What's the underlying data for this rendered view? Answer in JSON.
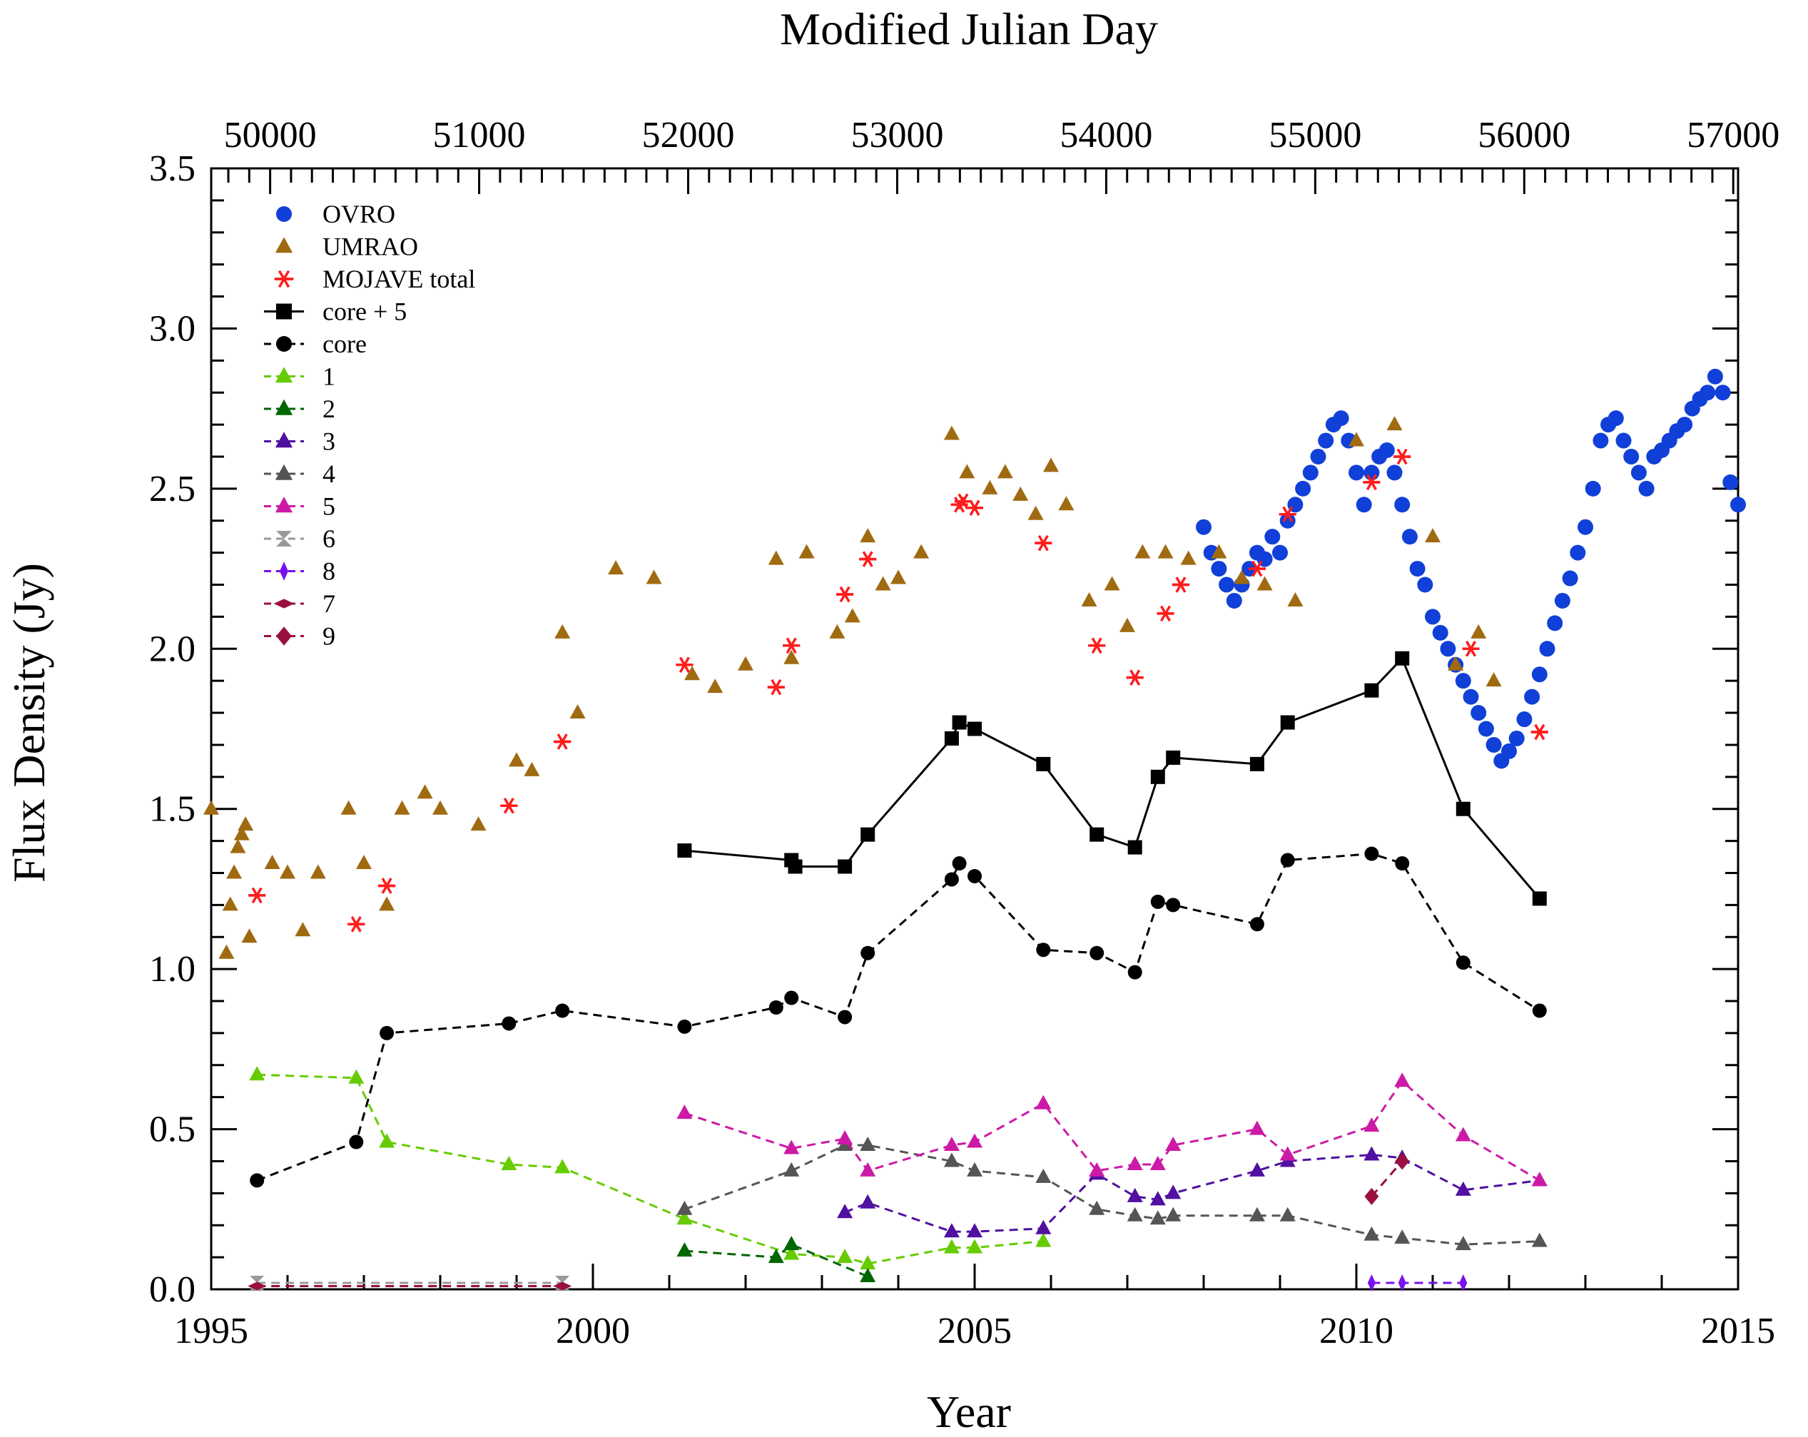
{
  "chart_data": {
    "type": "scatter",
    "title": "",
    "xlabel": "Year",
    "x2label": "Modified Julian Day",
    "ylabel": "Flux Density (Jy)",
    "xlim": [
      1995,
      2015
    ],
    "ylim": [
      0,
      3.5
    ],
    "xticks": [
      "1995",
      "2000",
      "2005",
      "2010",
      "2015"
    ],
    "x2ticks": [
      "50000",
      "51000",
      "52000",
      "53000",
      "54000",
      "55000",
      "56000",
      "57000"
    ],
    "yticks": [
      "0.0",
      "0.5",
      "1.0",
      "1.5",
      "2.0",
      "2.5",
      "3.0",
      "3.5"
    ],
    "legend_position": "top-left",
    "series": [
      {
        "name": "OVRO",
        "marker": "circle",
        "color": "#1040d8",
        "line": "none",
        "x": [
          2008.0,
          2008.1,
          2008.2,
          2008.3,
          2008.4,
          2008.5,
          2008.6,
          2008.7,
          2008.8,
          2008.9,
          2009.0,
          2009.1,
          2009.2,
          2009.3,
          2009.4,
          2009.5,
          2009.6,
          2009.7,
          2009.8,
          2009.9,
          2010.0,
          2010.1,
          2010.2,
          2010.3,
          2010.4,
          2010.5,
          2010.6,
          2010.7,
          2010.8,
          2010.9,
          2011.0,
          2011.1,
          2011.2,
          2011.3,
          2011.4,
          2011.5,
          2011.6,
          2011.7,
          2011.8,
          2011.9,
          2012.0,
          2012.1,
          2012.2,
          2012.3,
          2012.4,
          2012.5,
          2012.6,
          2012.7,
          2012.8,
          2012.9,
          2013.0,
          2013.1,
          2013.2,
          2013.3,
          2013.4,
          2013.5,
          2013.6,
          2013.7,
          2013.8,
          2013.9,
          2014.0,
          2014.1,
          2014.2,
          2014.3,
          2014.4,
          2014.5,
          2014.6,
          2014.7,
          2014.8,
          2014.9,
          2015.0
        ],
        "y": [
          2.38,
          2.3,
          2.25,
          2.2,
          2.15,
          2.2,
          2.25,
          2.3,
          2.28,
          2.35,
          2.3,
          2.4,
          2.45,
          2.5,
          2.55,
          2.6,
          2.65,
          2.7,
          2.72,
          2.65,
          2.55,
          2.45,
          2.55,
          2.6,
          2.62,
          2.55,
          2.45,
          2.35,
          2.25,
          2.2,
          2.1,
          2.05,
          2.0,
          1.95,
          1.9,
          1.85,
          1.8,
          1.75,
          1.7,
          1.65,
          1.68,
          1.72,
          1.78,
          1.85,
          1.92,
          2.0,
          2.08,
          2.15,
          2.22,
          2.3,
          2.38,
          2.5,
          2.65,
          2.7,
          2.72,
          2.65,
          2.6,
          2.55,
          2.5,
          2.6,
          2.62,
          2.65,
          2.68,
          2.7,
          2.75,
          2.78,
          2.8,
          2.85,
          2.8,
          2.52,
          2.45
        ]
      },
      {
        "name": "UMRAO",
        "marker": "triangle",
        "color": "#a06a10",
        "line": "none",
        "x": [
          1995.0,
          1995.2,
          1995.25,
          1995.3,
          1995.35,
          1995.4,
          1995.45,
          1995.5,
          1995.8,
          1996.0,
          1996.2,
          1996.4,
          1996.8,
          1997.0,
          1997.3,
          1997.5,
          1997.8,
          1998.0,
          1998.5,
          1999.0,
          1999.2,
          1999.6,
          1999.8,
          2000.3,
          2000.8,
          2001.3,
          2001.6,
          2002.0,
          2002.4,
          2002.6,
          2002.8,
          2003.2,
          2003.4,
          2003.6,
          2003.8,
          2004.0,
          2004.3,
          2004.7,
          2004.9,
          2005.2,
          2005.4,
          2005.6,
          2005.8,
          2006.0,
          2006.2,
          2006.5,
          2006.8,
          2007.0,
          2007.2,
          2007.5,
          2007.8,
          2008.2,
          2008.5,
          2008.8,
          2009.2,
          2010.0,
          2010.5,
          2011.0,
          2011.3,
          2011.6,
          2011.8
        ],
        "y": [
          1.5,
          1.05,
          1.2,
          1.3,
          1.38,
          1.42,
          1.45,
          1.1,
          1.33,
          1.3,
          1.12,
          1.3,
          1.5,
          1.33,
          1.2,
          1.5,
          1.55,
          1.5,
          1.45,
          1.65,
          1.62,
          2.05,
          1.8,
          2.25,
          2.22,
          1.92,
          1.88,
          1.95,
          2.28,
          1.97,
          2.3,
          2.05,
          2.1,
          2.35,
          2.2,
          2.22,
          2.3,
          2.67,
          2.55,
          2.5,
          2.55,
          2.48,
          2.42,
          2.57,
          2.45,
          2.15,
          2.2,
          2.07,
          2.3,
          2.3,
          2.28,
          2.3,
          2.22,
          2.2,
          2.15,
          2.65,
          2.7,
          2.35,
          1.95,
          2.05,
          1.9
        ]
      },
      {
        "name": "MOJAVE total",
        "marker": "asterisk",
        "color": "#ff1c1c",
        "line": "none",
        "x": [
          1995.6,
          1996.9,
          1997.3,
          1998.9,
          1999.6,
          2001.2,
          2002.4,
          2002.6,
          2003.3,
          2003.6,
          2004.8,
          2004.85,
          2005.0,
          2005.9,
          2006.6,
          2007.1,
          2007.5,
          2007.7,
          2008.7,
          2009.1,
          2010.2,
          2010.6,
          2011.5,
          2012.4
        ],
        "y": [
          1.23,
          1.14,
          1.26,
          1.51,
          1.71,
          1.95,
          1.88,
          2.01,
          2.17,
          2.28,
          2.45,
          2.46,
          2.44,
          2.33,
          2.01,
          1.91,
          2.11,
          2.2,
          2.25,
          2.42,
          2.52,
          2.6,
          2.0,
          1.74
        ]
      },
      {
        "name": "core + 5",
        "marker": "square",
        "color": "#000000",
        "line": "solid",
        "x": [
          2001.2,
          2002.6,
          2002.65,
          2003.3,
          2003.6,
          2004.7,
          2004.8,
          2005.0,
          2005.9,
          2006.6,
          2007.1,
          2007.4,
          2007.6,
          2008.7,
          2009.1,
          2010.2,
          2010.6,
          2011.4,
          2012.4
        ],
        "y": [
          1.37,
          1.34,
          1.32,
          1.32,
          1.42,
          1.72,
          1.77,
          1.75,
          1.64,
          1.42,
          1.38,
          1.6,
          1.66,
          1.64,
          1.77,
          1.87,
          1.97,
          1.5,
          1.22
        ]
      },
      {
        "name": "core",
        "marker": "circle",
        "color": "#000000",
        "line": "dashed",
        "x": [
          1995.6,
          1996.9,
          1997.3,
          1998.9,
          1999.6,
          2001.2,
          2002.4,
          2002.6,
          2003.3,
          2003.6,
          2004.7,
          2004.8,
          2005.0,
          2005.9,
          2006.6,
          2007.1,
          2007.4,
          2007.6,
          2008.7,
          2009.1,
          2010.2,
          2010.6,
          2011.4,
          2012.4
        ],
        "y": [
          0.34,
          0.46,
          0.8,
          0.83,
          0.87,
          0.82,
          0.88,
          0.91,
          0.85,
          1.05,
          1.28,
          1.33,
          1.29,
          1.06,
          1.05,
          0.99,
          1.21,
          1.2,
          1.14,
          1.34,
          1.36,
          1.33,
          1.02,
          0.87
        ]
      },
      {
        "name": "1",
        "marker": "triangle",
        "color": "#66cc00",
        "line": "dashed",
        "x": [
          1995.6,
          1996.9,
          1997.3,
          1998.9,
          1999.6,
          2001.2,
          2002.6,
          2003.3,
          2003.6,
          2004.7,
          2005.0,
          2005.9
        ],
        "y": [
          0.67,
          0.66,
          0.46,
          0.39,
          0.38,
          0.22,
          0.11,
          0.1,
          0.08,
          0.13,
          0.13,
          0.15
        ]
      },
      {
        "name": "2",
        "marker": "triangle",
        "color": "#006600",
        "line": "dashed",
        "x": [
          2001.2,
          2002.4,
          2002.6,
          2003.6
        ],
        "y": [
          0.12,
          0.1,
          0.14,
          0.04
        ]
      },
      {
        "name": "3",
        "marker": "triangle",
        "color": "#5010a0",
        "line": "dashed",
        "x": [
          2003.3,
          2003.6,
          2004.7,
          2005.0,
          2005.9,
          2006.6,
          2007.1,
          2007.4,
          2007.6,
          2008.7,
          2009.1,
          2010.2,
          2010.6,
          2011.4,
          2012.4
        ],
        "y": [
          0.24,
          0.27,
          0.18,
          0.18,
          0.19,
          0.36,
          0.29,
          0.28,
          0.3,
          0.37,
          0.4,
          0.42,
          0.41,
          0.31,
          0.34
        ]
      },
      {
        "name": "4",
        "marker": "triangle",
        "color": "#555555",
        "line": "dashed",
        "x": [
          2001.2,
          2002.6,
          2003.3,
          2003.6,
          2004.7,
          2005.0,
          2005.9,
          2006.6,
          2007.1,
          2007.4,
          2007.6,
          2008.7,
          2009.1,
          2010.2,
          2010.6,
          2011.4,
          2012.4
        ],
        "y": [
          0.25,
          0.37,
          0.45,
          0.45,
          0.4,
          0.37,
          0.35,
          0.25,
          0.23,
          0.22,
          0.23,
          0.23,
          0.23,
          0.17,
          0.16,
          0.14,
          0.15
        ]
      },
      {
        "name": "5",
        "marker": "triangle",
        "color": "#cc1aa6",
        "line": "dashed",
        "x": [
          2001.2,
          2002.6,
          2003.3,
          2003.6,
          2004.7,
          2005.0,
          2005.9,
          2006.6,
          2007.1,
          2007.4,
          2007.6,
          2008.7,
          2009.1,
          2010.2,
          2010.6,
          2011.4,
          2012.4
        ],
        "y": [
          0.55,
          0.44,
          0.47,
          0.37,
          0.45,
          0.46,
          0.58,
          0.37,
          0.39,
          0.39,
          0.45,
          0.5,
          0.42,
          0.51,
          0.65,
          0.48,
          0.34
        ]
      },
      {
        "name": "6",
        "marker": "hourglass",
        "color": "#999999",
        "line": "dashed",
        "x": [
          1995.6,
          1999.6
        ],
        "y": [
          0.02,
          0.02
        ]
      },
      {
        "name": "8",
        "marker": "thin-diamond",
        "color": "#7a10ee",
        "line": "dashed",
        "x": [
          2010.2,
          2010.6,
          2011.4
        ],
        "y": [
          0.02,
          0.02,
          0.02
        ]
      },
      {
        "name": "7",
        "marker": "flat-diamond",
        "color": "#991040",
        "line": "dashed",
        "x": [
          1995.6,
          1999.6
        ],
        "y": [
          0.01,
          0.01
        ]
      },
      {
        "name": "9",
        "marker": "diamond",
        "color": "#991040",
        "line": "dashed",
        "x": [
          2010.2,
          2010.6
        ],
        "y": [
          0.29,
          0.4
        ]
      }
    ]
  }
}
